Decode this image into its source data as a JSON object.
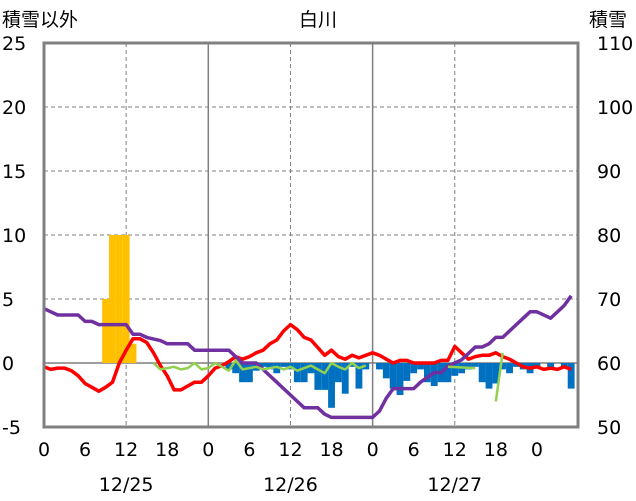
{
  "chart_data": {
    "type": "bar+line",
    "title": "白川",
    "left_axis_label": "積雪以外",
    "right_axis_label": "積雪",
    "left_ylim": [
      -5,
      25
    ],
    "right_ylim": [
      50,
      110
    ],
    "left_ticks": [
      "25",
      "20",
      "15",
      "10",
      "5",
      "0",
      "-5"
    ],
    "right_ticks": [
      "110",
      "100",
      "90",
      "80",
      "70",
      "60",
      "50"
    ],
    "x_ticks": [
      "0",
      "6",
      "12",
      "18",
      "0",
      "6",
      "12",
      "18",
      "0",
      "6",
      "12",
      "18",
      "0"
    ],
    "date_labels": [
      "12/25",
      "12/26",
      "12/27"
    ],
    "colors": {
      "snowfall": "#FFC000",
      "negative_bars": "#0070C0",
      "red_line": "#FF0000",
      "purple_line": "#7030A0",
      "green_line": "#92D050"
    },
    "series": [
      {
        "kind": "bar",
        "color": "#FFC000",
        "axis": "left",
        "points": [
          [
            9,
            5
          ],
          [
            10,
            10
          ],
          [
            11,
            10
          ],
          [
            12,
            10
          ],
          [
            13,
            1.5
          ]
        ]
      },
      {
        "kind": "bar",
        "color": "#0070C0",
        "axis": "left",
        "points": [
          [
            27,
            -0.5
          ],
          [
            28,
            -0.8
          ],
          [
            29,
            -1.5
          ],
          [
            30,
            -1.5
          ],
          [
            31,
            -0.6
          ],
          [
            32,
            -0.3
          ],
          [
            33,
            -0.5
          ],
          [
            34,
            -0.8
          ],
          [
            35,
            -0.3
          ],
          [
            36,
            -0.5
          ],
          [
            37,
            -1.5
          ],
          [
            38,
            -1.5
          ],
          [
            39,
            -0.8
          ],
          [
            40,
            -2.1
          ],
          [
            41,
            -2.1
          ],
          [
            42,
            -3.5
          ],
          [
            43,
            -1.5
          ],
          [
            44,
            -2.4
          ],
          [
            45,
            -0.3
          ],
          [
            46,
            -2.0
          ],
          [
            47,
            -0.5
          ],
          [
            49,
            -0.5
          ],
          [
            50,
            -1.2
          ],
          [
            51,
            -2.0
          ],
          [
            52,
            -2.5
          ],
          [
            53,
            -1.4
          ],
          [
            54,
            -0.8
          ],
          [
            55,
            -0.5
          ],
          [
            56,
            -1.5
          ],
          [
            57,
            -1.8
          ],
          [
            58,
            -1.5
          ],
          [
            59,
            -1.5
          ],
          [
            60,
            -1.0
          ],
          [
            61,
            -0.8
          ],
          [
            62,
            -0.5
          ],
          [
            63,
            -0.3
          ],
          [
            64,
            -1.5
          ],
          [
            65,
            -2.0
          ],
          [
            66,
            -1.6
          ],
          [
            67,
            -0.5
          ],
          [
            68,
            -0.8
          ],
          [
            69,
            -0.3
          ],
          [
            70,
            -0.5
          ],
          [
            71,
            -0.8
          ],
          [
            72,
            -0.3
          ],
          [
            74,
            -0.5
          ],
          [
            76,
            -0.3
          ],
          [
            77,
            -2.0
          ]
        ]
      },
      {
        "kind": "line",
        "color": "#FF0000",
        "axis": "left",
        "points": [
          [
            0,
            -0.3
          ],
          [
            1,
            -0.5
          ],
          [
            2,
            -0.4
          ],
          [
            3,
            -0.4
          ],
          [
            4,
            -0.6
          ],
          [
            5,
            -1.0
          ],
          [
            6,
            -1.6
          ],
          [
            7,
            -1.9
          ],
          [
            8,
            -2.2
          ],
          [
            9,
            -1.9
          ],
          [
            10,
            -1.5
          ],
          [
            11,
            0.0
          ],
          [
            12,
            1.0
          ],
          [
            13,
            1.9
          ],
          [
            14,
            1.9
          ],
          [
            15,
            1.6
          ],
          [
            16,
            0.8
          ],
          [
            17,
            -0.2
          ],
          [
            18,
            -1.0
          ],
          [
            19,
            -2.1
          ],
          [
            20,
            -2.1
          ],
          [
            21,
            -1.8
          ],
          [
            22,
            -1.5
          ],
          [
            23,
            -1.5
          ],
          [
            24,
            -1.0
          ],
          [
            25,
            -0.4
          ],
          [
            26,
            -0.2
          ],
          [
            27,
            0.1
          ],
          [
            28,
            0.5
          ],
          [
            29,
            0.3
          ],
          [
            30,
            0.5
          ],
          [
            31,
            0.8
          ],
          [
            32,
            1.0
          ],
          [
            33,
            1.5
          ],
          [
            34,
            1.8
          ],
          [
            35,
            2.5
          ],
          [
            36,
            3.0
          ],
          [
            37,
            2.6
          ],
          [
            38,
            2.0
          ],
          [
            39,
            1.8
          ],
          [
            40,
            1.2
          ],
          [
            41,
            0.6
          ],
          [
            42,
            1.0
          ],
          [
            43,
            0.5
          ],
          [
            44,
            0.3
          ],
          [
            45,
            0.6
          ],
          [
            46,
            0.4
          ],
          [
            47,
            0.6
          ],
          [
            48,
            0.8
          ],
          [
            49,
            0.6
          ],
          [
            50,
            0.3
          ],
          [
            51,
            0.0
          ],
          [
            52,
            0.2
          ],
          [
            53,
            0.2
          ],
          [
            54,
            0.0
          ],
          [
            55,
            0.0
          ],
          [
            56,
            0.0
          ],
          [
            57,
            0.0
          ],
          [
            58,
            0.2
          ],
          [
            59,
            0.2
          ],
          [
            60,
            1.3
          ],
          [
            61,
            0.8
          ],
          [
            62,
            0.3
          ],
          [
            63,
            0.5
          ],
          [
            64,
            0.6
          ],
          [
            65,
            0.6
          ],
          [
            66,
            0.8
          ],
          [
            67,
            0.5
          ],
          [
            68,
            0.3
          ],
          [
            69,
            0.0
          ],
          [
            70,
            -0.3
          ],
          [
            71,
            -0.4
          ],
          [
            72,
            -0.3
          ],
          [
            73,
            -0.5
          ],
          [
            74,
            -0.4
          ],
          [
            75,
            -0.5
          ],
          [
            76,
            -0.3
          ],
          [
            77,
            -0.5
          ]
        ]
      },
      {
        "kind": "line",
        "color": "#7030A0",
        "axis": "right",
        "points": [
          [
            0,
            68.5
          ],
          [
            1,
            68
          ],
          [
            2,
            67.5
          ],
          [
            5,
            67.5
          ],
          [
            6,
            66.5
          ],
          [
            7,
            66.5
          ],
          [
            8,
            66
          ],
          [
            12,
            66
          ],
          [
            13,
            64.5
          ],
          [
            14,
            64.5
          ],
          [
            15,
            64
          ],
          [
            17,
            63.5
          ],
          [
            18,
            63
          ],
          [
            21,
            63
          ],
          [
            22,
            62
          ],
          [
            24,
            62
          ],
          [
            27,
            62
          ],
          [
            29,
            60
          ],
          [
            31,
            60
          ],
          [
            32,
            59
          ],
          [
            33,
            58
          ],
          [
            34,
            57
          ],
          [
            35,
            56
          ],
          [
            36,
            55
          ],
          [
            37,
            54
          ],
          [
            38,
            53
          ],
          [
            40,
            53
          ],
          [
            41,
            52
          ],
          [
            42,
            51.5
          ],
          [
            48,
            51.5
          ],
          [
            49,
            52.5
          ],
          [
            50,
            54.5
          ],
          [
            51,
            56
          ],
          [
            54,
            56
          ],
          [
            55,
            57
          ],
          [
            57,
            58.5
          ],
          [
            58,
            58.5
          ],
          [
            59,
            59.5
          ],
          [
            60,
            60
          ],
          [
            61,
            60.5
          ],
          [
            62,
            61.5
          ],
          [
            63,
            62.5
          ],
          [
            64,
            62.5
          ],
          [
            65,
            63
          ],
          [
            66,
            64
          ],
          [
            67,
            64
          ],
          [
            68,
            65
          ],
          [
            70,
            67
          ],
          [
            71,
            68
          ],
          [
            72,
            68
          ],
          [
            74,
            67
          ],
          [
            75,
            68
          ],
          [
            76,
            69
          ],
          [
            77,
            70.5
          ]
        ]
      },
      {
        "kind": "line",
        "color": "#92D050",
        "axis": "left",
        "segments": [
          [
            [
              16,
              0.0
            ],
            [
              17,
              -0.5
            ],
            [
              18,
              -0.4
            ],
            [
              19,
              -0.3
            ],
            [
              20,
              -0.5
            ],
            [
              21,
              -0.4
            ],
            [
              22,
              0.0
            ],
            [
              23,
              -0.5
            ],
            [
              24,
              -0.4
            ],
            [
              25,
              0.0
            ],
            [
              26,
              -0.3
            ],
            [
              27,
              -0.6
            ],
            [
              28,
              0.2
            ],
            [
              29,
              -0.5
            ],
            [
              30,
              -0.4
            ],
            [
              31,
              -0.3
            ],
            [
              32,
              -0.5
            ],
            [
              33,
              -0.4
            ],
            [
              34,
              -0.3
            ],
            [
              35,
              -0.5
            ],
            [
              36,
              -0.3
            ],
            [
              37,
              -0.6
            ],
            [
              38,
              -0.4
            ],
            [
              39,
              -0.2
            ],
            [
              40,
              -0.5
            ],
            [
              41,
              -0.8
            ],
            [
              42,
              0.0
            ],
            [
              43,
              -0.3
            ],
            [
              44,
              -0.5
            ],
            [
              45,
              0.0
            ],
            [
              46,
              -0.4
            ],
            [
              47,
              -0.2
            ]
          ],
          [
            [
              59,
              -0.3
            ],
            [
              63,
              -0.4
            ]
          ],
          [
            [
              66,
              -3.0
            ],
            [
              67,
              0.8
            ]
          ]
        ]
      }
    ]
  }
}
